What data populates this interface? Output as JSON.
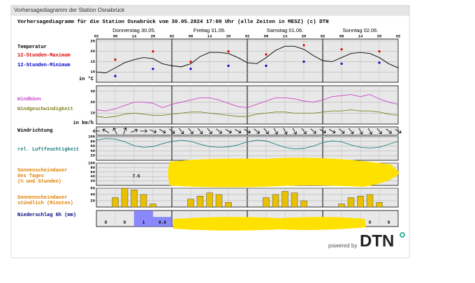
{
  "header": {
    "page_title": "Vorhersagediagramm der Station Osnabrück",
    "title": "Vorhersagediagramm für die Station Osnabrück vom 30.05.2024 17:00 Uhr (alle Zeiten in MESZ)   (c) DTN"
  },
  "chart_data": [
    {
      "type": "line",
      "title": "Temperatur",
      "unit_label": "in °C",
      "color": "#000000",
      "days": [
        "Donnerstag 30.05.",
        "Freitag 31.05.",
        "Samstag 01.06.",
        "Sonntag 02.06."
      ],
      "categories": [
        "02",
        null,
        "08",
        null,
        "14",
        null,
        "20",
        null,
        "02",
        null,
        "08",
        null,
        "14",
        null,
        "20",
        null,
        "02",
        null,
        "08",
        null,
        "14",
        null,
        "20",
        null,
        "02",
        null,
        "08",
        null,
        "14",
        null,
        "20",
        null,
        "02"
      ],
      "values": [
        10,
        9.5,
        12,
        14.5,
        16,
        17,
        16.5,
        14,
        13,
        12.5,
        14,
        17.5,
        19.5,
        19.5,
        19,
        17,
        14.5,
        14,
        17,
        20.5,
        22.5,
        22.5,
        21,
        18,
        15.5,
        15,
        17,
        19,
        19.5,
        19,
        17,
        14,
        12
      ],
      "series": [
        {
          "name": "12-Stunden-Maximum",
          "color": "#dd0000",
          "values": [
            null,
            null,
            16,
            null,
            null,
            null,
            20,
            null,
            null,
            null,
            15,
            null,
            null,
            null,
            20,
            null,
            null,
            null,
            18.5,
            null,
            null,
            null,
            23,
            null,
            null,
            null,
            21,
            null,
            null,
            null,
            20,
            null,
            null
          ]
        },
        {
          "name": "12-Stunden-Minimum",
          "color": "#0000cc",
          "values": [
            null,
            null,
            8,
            null,
            null,
            null,
            11.5,
            null,
            null,
            null,
            11.5,
            null,
            null,
            null,
            13,
            null,
            null,
            null,
            13,
            null,
            null,
            null,
            15,
            null,
            null,
            null,
            14,
            null,
            null,
            null,
            14.5,
            null,
            null
          ]
        }
      ],
      "ylim": [
        5,
        26
      ],
      "yticks": [
        10,
        15,
        20,
        25
      ],
      "grid": true
    },
    {
      "type": "line",
      "unit_label": "in km/h",
      "ylim": [
        0,
        35
      ],
      "yticks": [
        10,
        20,
        30
      ],
      "grid": true,
      "series": [
        {
          "name": "Windböen",
          "color": "#cc44cc",
          "values": [
            13,
            12,
            14,
            17,
            20,
            20,
            19,
            15,
            18,
            20,
            22,
            24,
            24,
            22,
            19,
            16,
            15,
            18,
            21,
            24,
            24,
            23,
            21,
            20,
            22,
            25,
            26,
            27,
            25,
            27,
            23,
            20,
            18
          ]
        },
        {
          "name": "Windgeschwindigkeit",
          "color": "#808020",
          "values": [
            7,
            6,
            7,
            9,
            10,
            9,
            8,
            8,
            9,
            10,
            11,
            11,
            10,
            9,
            8,
            7,
            7,
            9,
            10,
            11,
            11,
            10,
            10,
            10,
            11,
            12,
            12,
            13,
            12,
            12,
            11,
            9,
            8
          ]
        }
      ]
    },
    {
      "type": "arrows",
      "title": "Windrichtung",
      "values": [
        90,
        120,
        150,
        200,
        250,
        270,
        290,
        300,
        310,
        320,
        320,
        320,
        320,
        310,
        300,
        300,
        300,
        310,
        320,
        330,
        330,
        330,
        320,
        310,
        300,
        300,
        310,
        320,
        330,
        330,
        320,
        310,
        300
      ]
    },
    {
      "type": "line",
      "title": "rel. Luftfeuchtigkeit",
      "color": "#208080",
      "ylim": [
        0,
        100
      ],
      "yticks": [
        20,
        40,
        60,
        80,
        100
      ],
      "grid": true,
      "values": [
        85,
        92,
        90,
        78,
        62,
        55,
        58,
        70,
        80,
        85,
        80,
        68,
        58,
        55,
        57,
        65,
        78,
        85,
        82,
        68,
        55,
        48,
        50,
        60,
        75,
        82,
        78,
        65,
        55,
        52,
        55,
        68,
        80
      ]
    },
    {
      "type": "note",
      "title_lines": [
        "Sonnenscheindauer",
        "des Tages",
        "(% und Stunden)"
      ],
      "annotation": "7.6",
      "ylim": [
        0,
        100
      ],
      "yticks": [
        20,
        40,
        60,
        80,
        100
      ],
      "grid": true
    },
    {
      "type": "bar",
      "title_lines": [
        "Sonnenscheindauer",
        "stündlich (Minuten)"
      ],
      "color": "#e8c000",
      "ylim": [
        0,
        60
      ],
      "yticks": [
        20,
        40,
        60
      ],
      "grid": true,
      "values": [
        0,
        0,
        30,
        60,
        55,
        40,
        10,
        0,
        0,
        0,
        25,
        35,
        45,
        40,
        15,
        0,
        0,
        0,
        30,
        40,
        50,
        45,
        20,
        0,
        0,
        0,
        10,
        30,
        35,
        40,
        15,
        0,
        0
      ]
    },
    {
      "type": "precip",
      "title": "Niederschlag 6h (mm)",
      "color": "#7070ff",
      "ylim": [
        0,
        1
      ],
      "values": [
        0,
        0,
        1,
        0.6,
        null,
        null,
        null,
        null,
        null,
        null,
        null,
        null,
        null,
        null,
        0,
        0
      ]
    }
  ],
  "footer": {
    "powered": "powered by",
    "logo": "DTN"
  }
}
